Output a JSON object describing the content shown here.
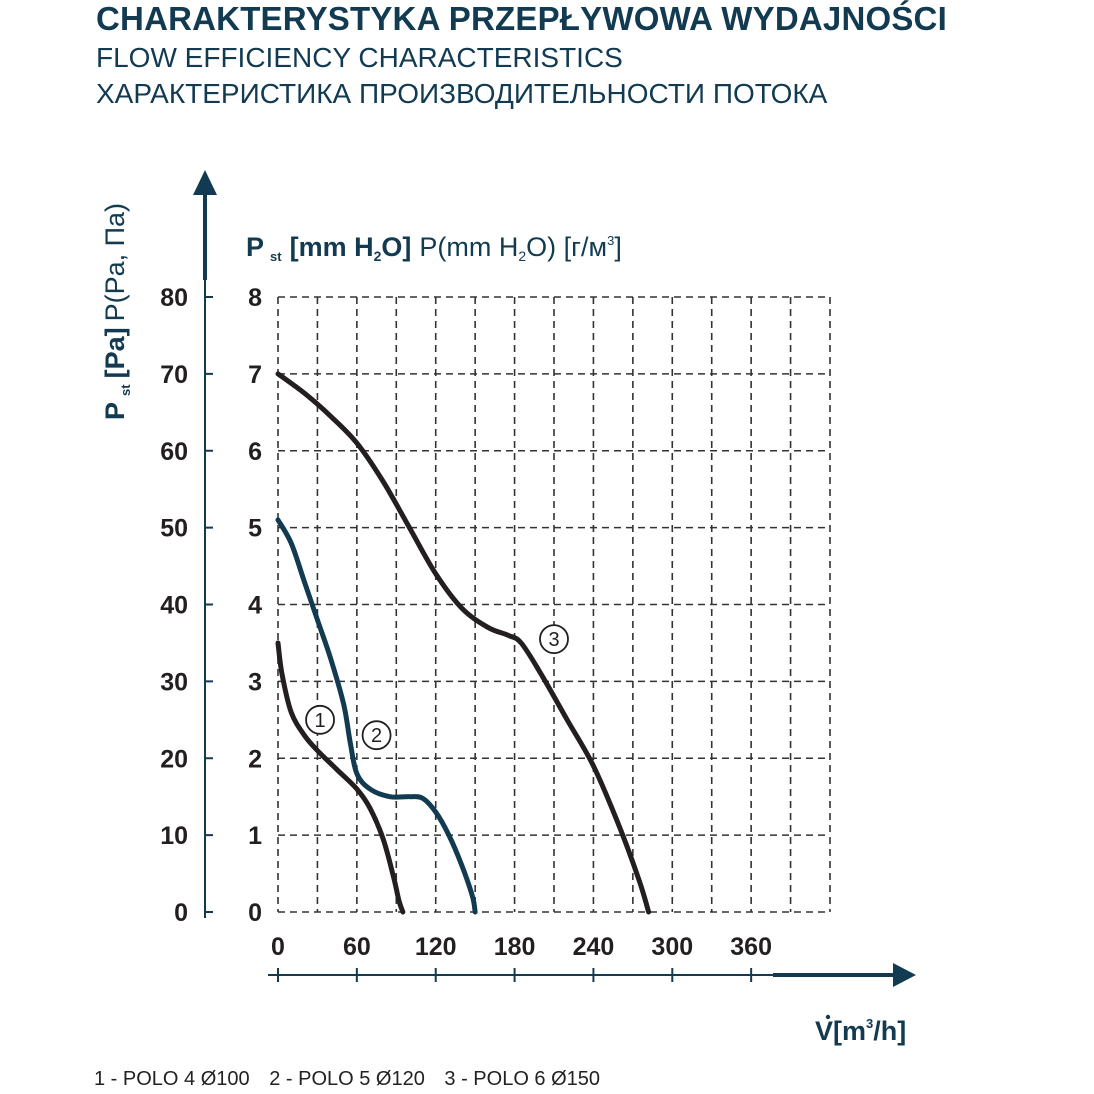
{
  "header": {
    "title": "CHARAKTERYSTYKA PRZEPŁYWOWA WYDAJNOŚCI",
    "subtitle_en": "FLOW EFFICIENCY CHARACTERISTICS",
    "subtitle_ru": "ХАРАКТЕРИСТИКА ПРОИЗВОДИТЕЛЬНОСТИ ПОТОКА"
  },
  "colors": {
    "dark": "#231f20",
    "accent": "#123b52",
    "grid": "#333333"
  },
  "chart_data": {
    "type": "line",
    "y_left_label": {
      "main": "P",
      "sub": "st",
      "unit": "[Pa]",
      "alt": "P(Pa, Па)"
    },
    "y_inner_label": {
      "main": "P",
      "sub": "st",
      "unit_pre": "[mm H",
      "unit_sub": "2",
      "unit_post": "O]",
      "alt_pre": "P(mm H",
      "alt_sub": "2",
      "alt_post": "O) [г/м",
      "alt_sup": "3",
      "alt_end": "]"
    },
    "x_label": {
      "pre": "V",
      "unit_pre": "[m",
      "unit_sup": "3",
      "unit_post": "/h]"
    },
    "x_ticks": [
      "0",
      "60",
      "120",
      "180",
      "240",
      "300",
      "360"
    ],
    "y_ticks_pa": [
      "0",
      "10",
      "20",
      "30",
      "40",
      "50",
      "60",
      "70",
      "80"
    ],
    "y_ticks_mm": [
      "0",
      "1",
      "2",
      "3",
      "4",
      "5",
      "6",
      "7",
      "8"
    ],
    "xlim": [
      0,
      420
    ],
    "ylim_pa": [
      0,
      80
    ],
    "grid": true,
    "series": [
      {
        "name": "1",
        "color": "#231f20",
        "x": [
          0,
          3,
          10,
          20,
          30,
          45,
          60,
          70,
          80,
          88,
          92,
          95
        ],
        "y": [
          35,
          31,
          26,
          23,
          21,
          18.5,
          16,
          13.5,
          9.5,
          4.5,
          1.5,
          0
        ],
        "marker_x": 32,
        "marker_y": 25
      },
      {
        "name": "2",
        "color": "#123b52",
        "x": [
          0,
          10,
          20,
          30,
          40,
          50,
          55,
          60,
          70,
          85,
          100,
          110,
          120,
          130,
          140,
          148,
          150
        ],
        "y": [
          51,
          48,
          43,
          38,
          33,
          27,
          22,
          18,
          16,
          15,
          15,
          14.8,
          13,
          10,
          6,
          2,
          0
        ],
        "marker_x": 75,
        "marker_y": 23
      },
      {
        "name": "3",
        "color": "#231f20",
        "x": [
          0,
          20,
          40,
          60,
          80,
          100,
          120,
          140,
          160,
          175,
          185,
          200,
          220,
          240,
          260,
          275,
          282
        ],
        "y": [
          70,
          67.5,
          64.5,
          61,
          56,
          50,
          44,
          39.5,
          37,
          36,
          35,
          31,
          25,
          19,
          11,
          4,
          0
        ],
        "marker_x": 210,
        "marker_y": 35.5
      }
    ]
  },
  "legend": {
    "items": [
      "1 - POLO 4 Ø100",
      "2 - POLO 5 Ø120",
      "3 - POLO 6 Ø150"
    ]
  }
}
